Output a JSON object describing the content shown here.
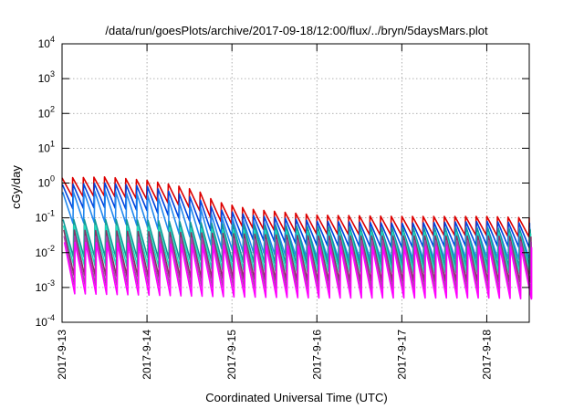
{
  "chart_data": {
    "type": "line",
    "title": "/data/run/goesPlots/archive/2017-09-18/12:00/flux/../bryn/5daysMars.plot",
    "xlabel": "Coordinated Universal Time (UTC)",
    "ylabel": "cGy/day",
    "yscale": "log",
    "ylim": [
      0.0001,
      10000
    ],
    "y_ticks": [
      {
        "base": "10",
        "exp": "-4"
      },
      {
        "base": "10",
        "exp": "-3"
      },
      {
        "base": "10",
        "exp": "-2"
      },
      {
        "base": "10",
        "exp": "-1"
      },
      {
        "base": "10",
        "exp": "0"
      },
      {
        "base": "10",
        "exp": "1"
      },
      {
        "base": "10",
        "exp": "2"
      },
      {
        "base": "10",
        "exp": "3"
      },
      {
        "base": "10",
        "exp": "4"
      }
    ],
    "x_ticks": [
      "2017-9-13",
      "2017-9-14",
      "2017-9-15",
      "2017-9-16",
      "2017-9-17",
      "2017-9-18"
    ],
    "xlim_days": [
      0,
      5.5
    ],
    "grid": true,
    "legend": "none",
    "series_shape": "sawtooth",
    "cycles_per_day": 8,
    "series": [
      {
        "color": "#dd0000",
        "envelope": [
          [
            0,
            1.4
          ],
          [
            0.5,
            1.5
          ],
          [
            1,
            1.2
          ],
          [
            1.3,
            0.9
          ],
          [
            1.6,
            0.6
          ],
          [
            1.8,
            0.3
          ],
          [
            2.2,
            0.18
          ],
          [
            3,
            0.12
          ],
          [
            4,
            0.11
          ],
          [
            5,
            0.11
          ],
          [
            5.5,
            0.1
          ]
        ],
        "drop": 3.5
      },
      {
        "color": "#0044dd",
        "envelope": [
          [
            0,
            0.9
          ],
          [
            0.5,
            1.0
          ],
          [
            1,
            0.8
          ],
          [
            1.3,
            0.55
          ],
          [
            1.6,
            0.35
          ],
          [
            1.8,
            0.18
          ],
          [
            2.2,
            0.12
          ],
          [
            3,
            0.08
          ],
          [
            4,
            0.07
          ],
          [
            5,
            0.08
          ],
          [
            5.5,
            0.07
          ]
        ],
        "drop": 5
      },
      {
        "color": "#2288ee",
        "envelope": [
          [
            0,
            0.55
          ],
          [
            0.5,
            0.6
          ],
          [
            1,
            0.45
          ],
          [
            1.3,
            0.3
          ],
          [
            1.6,
            0.2
          ],
          [
            1.8,
            0.11
          ],
          [
            2.2,
            0.08
          ],
          [
            3,
            0.055
          ],
          [
            4,
            0.05
          ],
          [
            5,
            0.055
          ],
          [
            5.5,
            0.05
          ]
        ],
        "drop": 8
      },
      {
        "color": "#119999",
        "envelope": [
          [
            0,
            0.09
          ],
          [
            0.5,
            0.09
          ],
          [
            1,
            0.085
          ],
          [
            1.5,
            0.075
          ],
          [
            2,
            0.065
          ],
          [
            3,
            0.055
          ],
          [
            4,
            0.05
          ],
          [
            5,
            0.05
          ],
          [
            5.5,
            0.045
          ]
        ],
        "drop": 12
      },
      {
        "color": "#22ddbb",
        "envelope": [
          [
            0,
            0.06
          ],
          [
            0.5,
            0.06
          ],
          [
            1,
            0.055
          ],
          [
            1.5,
            0.05
          ],
          [
            2,
            0.045
          ],
          [
            3,
            0.04
          ],
          [
            4,
            0.038
          ],
          [
            5,
            0.038
          ],
          [
            5.5,
            0.035
          ]
        ],
        "drop": 14
      },
      {
        "color": "#883366",
        "envelope": [
          [
            0,
            0.045
          ],
          [
            1,
            0.04
          ],
          [
            2,
            0.035
          ],
          [
            3,
            0.03
          ],
          [
            4,
            0.03
          ],
          [
            5,
            0.03
          ],
          [
            5.5,
            0.028
          ]
        ],
        "drop": 20
      },
      {
        "color": "#aa44aa",
        "envelope": [
          [
            0,
            0.03
          ],
          [
            1,
            0.028
          ],
          [
            2,
            0.025
          ],
          [
            3,
            0.022
          ],
          [
            4,
            0.022
          ],
          [
            5,
            0.022
          ],
          [
            5.5,
            0.02
          ]
        ],
        "drop": 25
      },
      {
        "color": "#ff00ff",
        "envelope": [
          [
            0,
            0.02
          ],
          [
            1,
            0.018
          ],
          [
            2,
            0.016
          ],
          [
            3,
            0.015
          ],
          [
            4,
            0.015
          ],
          [
            5,
            0.015
          ],
          [
            5.5,
            0.014
          ]
        ],
        "drop": 30
      }
    ]
  }
}
